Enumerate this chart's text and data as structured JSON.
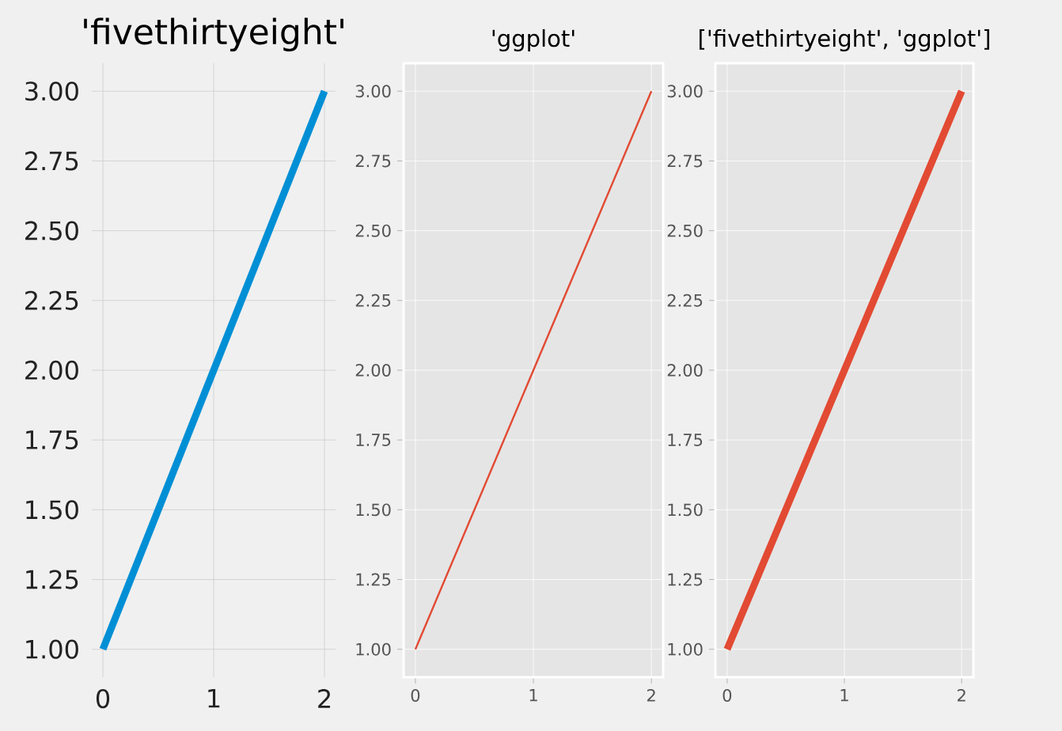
{
  "chart_data": [
    {
      "type": "line",
      "title": "'fivethirtyeight'",
      "x": [
        0,
        1,
        2
      ],
      "series": [
        {
          "color": "#008fd5",
          "values": [
            1,
            2,
            3
          ]
        }
      ],
      "xlim": [
        -0.1,
        2.1
      ],
      "ylim": [
        0.9,
        3.1
      ],
      "xticks": [
        0,
        1,
        2
      ],
      "yticks": [
        {
          "value": 1,
          "label": "1.00"
        },
        {
          "value": 1.25,
          "label": "1.25"
        },
        {
          "value": 1.5,
          "label": "1.50"
        },
        {
          "value": 1.75,
          "label": "1.75"
        },
        {
          "value": 2,
          "label": "2.00"
        },
        {
          "value": 2.25,
          "label": "2.25"
        },
        {
          "value": 2.5,
          "label": "2.50"
        },
        {
          "value": 2.75,
          "label": "2.75"
        },
        {
          "value": 3,
          "label": "3.00"
        }
      ],
      "grid": true
    },
    {
      "type": "line",
      "title": "'ggplot'",
      "x": [
        0,
        1,
        2
      ],
      "series": [
        {
          "color": "#e24a33",
          "values": [
            1,
            2,
            3
          ]
        }
      ],
      "xlim": [
        -0.1,
        2.1
      ],
      "ylim": [
        0.9,
        3.1
      ],
      "xticks": [
        0,
        1,
        2
      ],
      "yticks": [
        {
          "value": 1,
          "label": "1.00"
        },
        {
          "value": 1.25,
          "label": "1.25"
        },
        {
          "value": 1.5,
          "label": "1.50"
        },
        {
          "value": 1.75,
          "label": "1.75"
        },
        {
          "value": 2,
          "label": "2.00"
        },
        {
          "value": 2.25,
          "label": "2.25"
        },
        {
          "value": 2.5,
          "label": "2.50"
        },
        {
          "value": 2.75,
          "label": "2.75"
        },
        {
          "value": 3,
          "label": "3.00"
        }
      ],
      "grid": true
    },
    {
      "type": "line",
      "title": "['fivethirtyeight', 'ggplot']",
      "x": [
        0,
        1,
        2
      ],
      "series": [
        {
          "color": "#e24a33",
          "values": [
            1,
            2,
            3
          ]
        }
      ],
      "xlim": [
        -0.1,
        2.1
      ],
      "ylim": [
        0.9,
        3.1
      ],
      "xticks": [
        0,
        1,
        2
      ],
      "yticks": [
        {
          "value": 1,
          "label": "1.00"
        },
        {
          "value": 1.25,
          "label": "1.25"
        },
        {
          "value": 1.5,
          "label": "1.50"
        },
        {
          "value": 1.75,
          "label": "1.75"
        },
        {
          "value": 2,
          "label": "2.00"
        },
        {
          "value": 2.25,
          "label": "2.25"
        },
        {
          "value": 2.5,
          "label": "2.50"
        },
        {
          "value": 2.75,
          "label": "2.75"
        },
        {
          "value": 3,
          "label": "3.00"
        }
      ],
      "grid": true
    }
  ]
}
